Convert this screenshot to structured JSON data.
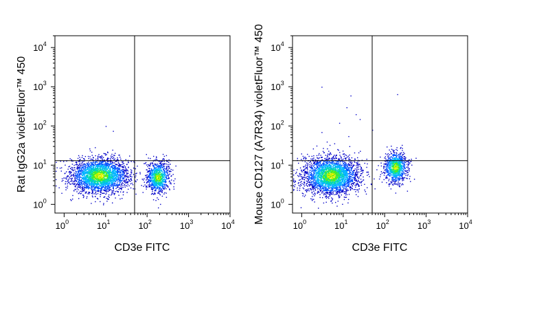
{
  "chart_data": [
    {
      "type": "scatter",
      "xlabel": "CD3e FITC",
      "ylabel": "Rat IgG2a violetFluor™ 450",
      "xscale": "log",
      "yscale": "log",
      "xlim": [
        0.6,
        10000
      ],
      "ylim": [
        0.6,
        20000
      ],
      "x_ticks": [
        {
          "base": "10",
          "exp": "0"
        },
        {
          "base": "10",
          "exp": "1"
        },
        {
          "base": "10",
          "exp": "2"
        },
        {
          "base": "10",
          "exp": "3"
        },
        {
          "base": "10",
          "exp": "4"
        }
      ],
      "y_ticks": [
        {
          "base": "10",
          "exp": "0"
        },
        {
          "base": "10",
          "exp": "1"
        },
        {
          "base": "10",
          "exp": "2"
        },
        {
          "base": "10",
          "exp": "3"
        },
        {
          "base": "10",
          "exp": "4"
        }
      ],
      "quadrant_gate": {
        "x": 50,
        "y": 13
      },
      "density_colormap": [
        "#0000c8",
        "#0050ff",
        "#00b4ff",
        "#00e0a0",
        "#60f000",
        "#f0f000"
      ],
      "populations": [
        {
          "center_x": 7,
          "center_y": 5.5,
          "spread_log_x": 0.35,
          "spread_log_y": 0.22,
          "count": 2600
        },
        {
          "center_x": 180,
          "center_y": 5,
          "spread_log_x": 0.14,
          "spread_log_y": 0.2,
          "count": 900
        }
      ],
      "outliers": [
        [
          10,
          100
        ],
        [
          15,
          75
        ]
      ]
    },
    {
      "type": "scatter",
      "xlabel": "CD3e FITC",
      "ylabel": "Mouse CD127 (A7R34) violetFluor™ 450",
      "xscale": "log",
      "yscale": "log",
      "xlim": [
        0.6,
        10000
      ],
      "ylim": [
        0.6,
        20000
      ],
      "x_ticks": [
        {
          "base": "10",
          "exp": "0"
        },
        {
          "base": "10",
          "exp": "1"
        },
        {
          "base": "10",
          "exp": "2"
        },
        {
          "base": "10",
          "exp": "3"
        },
        {
          "base": "10",
          "exp": "4"
        }
      ],
      "y_ticks": [
        {
          "base": "10",
          "exp": "0"
        },
        {
          "base": "10",
          "exp": "1"
        },
        {
          "base": "10",
          "exp": "2"
        },
        {
          "base": "10",
          "exp": "3"
        },
        {
          "base": "10",
          "exp": "4"
        }
      ],
      "quadrant_gate": {
        "x": 50,
        "y": 13
      },
      "density_colormap": [
        "#0000c8",
        "#0050ff",
        "#00b4ff",
        "#00e0a0",
        "#60f000",
        "#f0f000"
      ],
      "populations": [
        {
          "center_x": 5,
          "center_y": 5.5,
          "spread_log_x": 0.33,
          "spread_log_y": 0.24,
          "count": 2700
        },
        {
          "center_x": 180,
          "center_y": 9,
          "spread_log_x": 0.14,
          "spread_log_y": 0.2,
          "count": 900
        }
      ],
      "outliers": [
        [
          3,
          1000
        ],
        [
          15,
          600
        ],
        [
          20,
          200
        ],
        [
          200,
          650
        ],
        [
          8,
          120
        ],
        [
          3,
          70
        ],
        [
          50,
          80
        ],
        [
          12,
          300
        ],
        [
          25,
          150
        ],
        [
          4,
          40
        ]
      ]
    }
  ]
}
